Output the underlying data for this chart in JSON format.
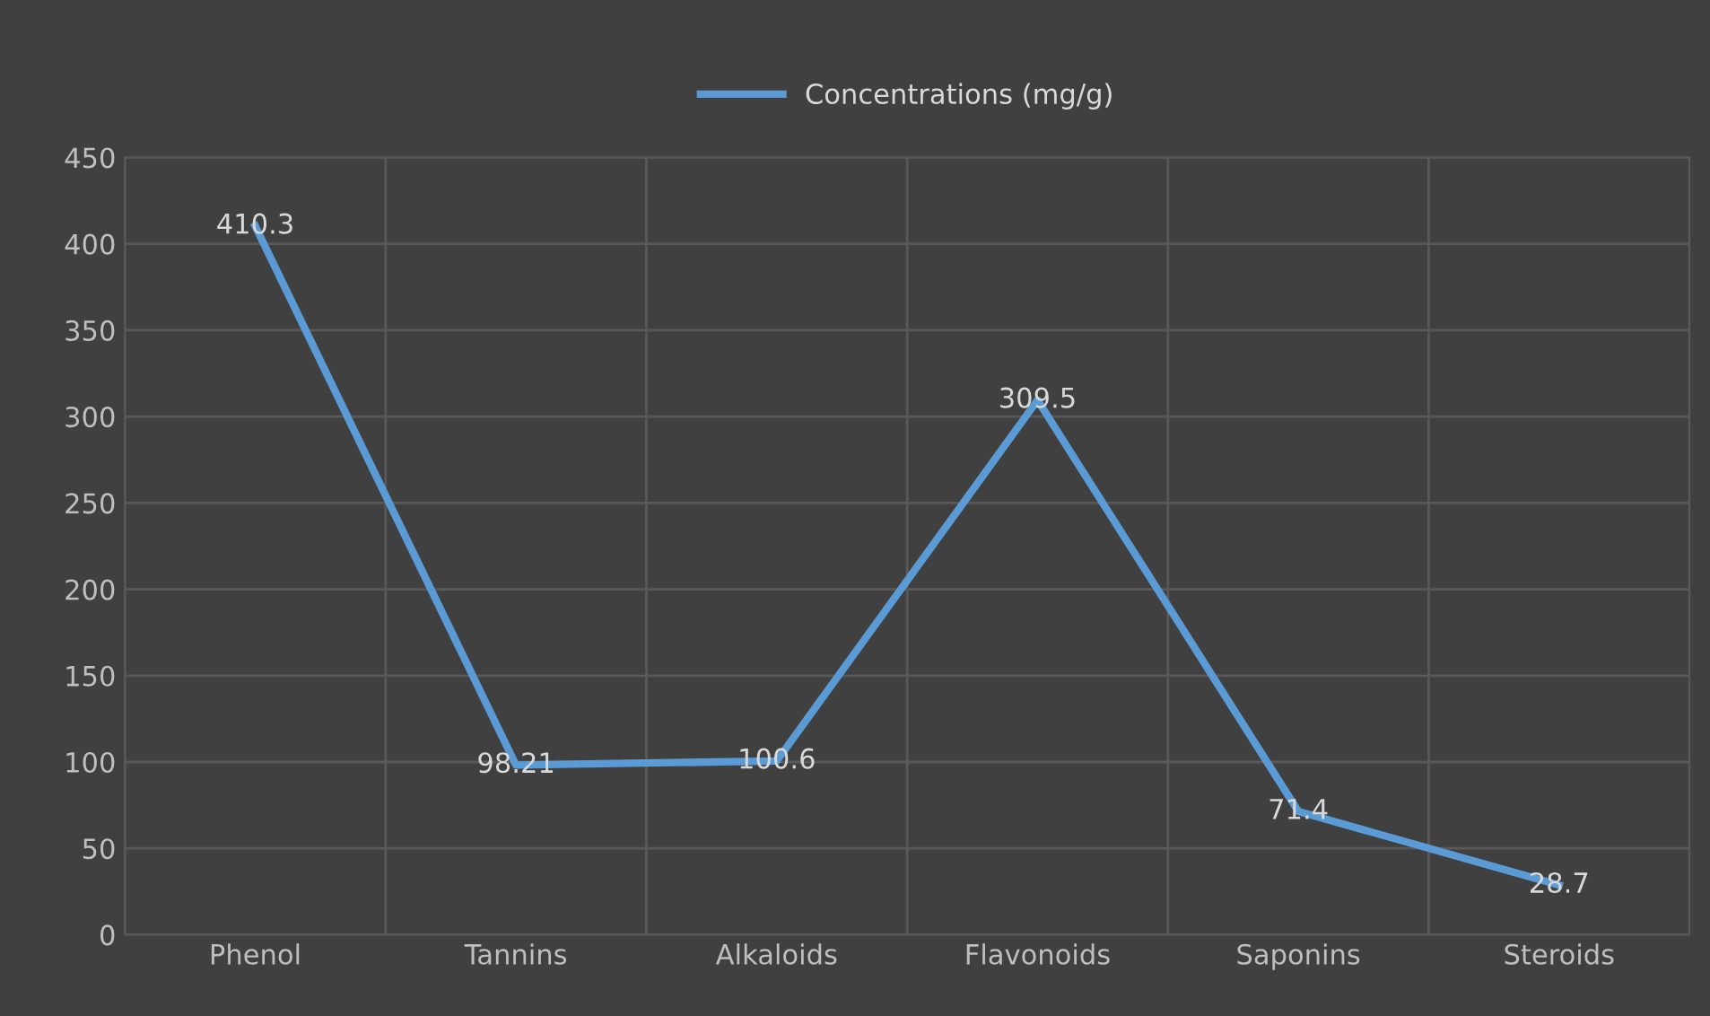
{
  "chart_data": {
    "type": "line",
    "categories": [
      "Phenol",
      "Tannins",
      "Alkaloids",
      "Flavonoids",
      "Saponins",
      "Steroids"
    ],
    "series": [
      {
        "name": "Concentrations (mg/g)",
        "color": "#5b9bd5",
        "values": [
          410.3,
          98.21,
          100.6,
          309.5,
          71.4,
          28.7
        ]
      }
    ],
    "value_labels": [
      "410.3",
      "98.21",
      "100.6",
      "309.5",
      "71.4",
      "28.7"
    ],
    "ylim": [
      0,
      450
    ],
    "yticks": [
      0,
      50,
      100,
      150,
      200,
      250,
      300,
      350,
      400,
      450
    ],
    "grid": true,
    "legend": "top",
    "marker": "none",
    "line_style": "solid"
  }
}
